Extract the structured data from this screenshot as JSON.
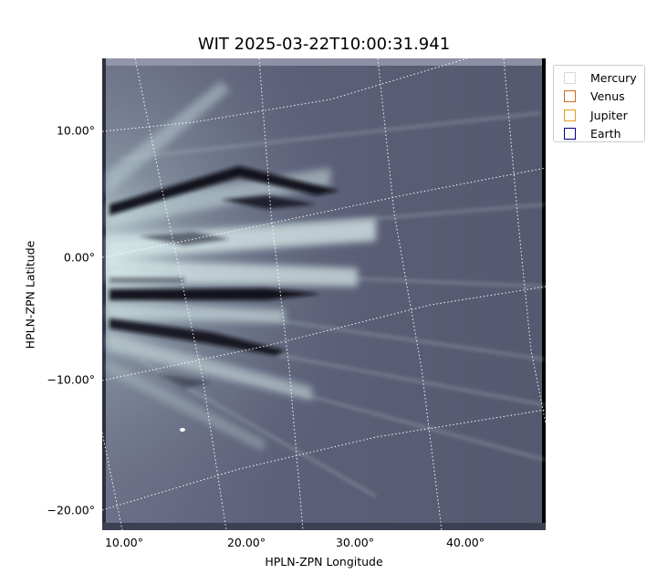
{
  "title": "WIT 2025-03-22T10:00:31.941",
  "xlabel": "HPLN-ZPN Longitude",
  "ylabel": "HPLN-ZPN Latitude",
  "yticks": [
    "10.00°",
    "0.00°",
    "−10.00°",
    "−20.00°"
  ],
  "xticks": [
    "10.00°",
    "20.00°",
    "30.00°",
    "40.00°"
  ],
  "legend": [
    {
      "label": "Mercury",
      "color": "#d9d9d9"
    },
    {
      "label": "Venus",
      "color": "#d2691e"
    },
    {
      "label": "Jupiter",
      "color": "#e0a020"
    },
    {
      "label": "Earth",
      "color": "#000080"
    }
  ],
  "colors": {
    "image_background": "#5e6178",
    "streamer_bright": "#d9eceb",
    "dark_lane": "#101018",
    "grid": "#ffffff"
  }
}
